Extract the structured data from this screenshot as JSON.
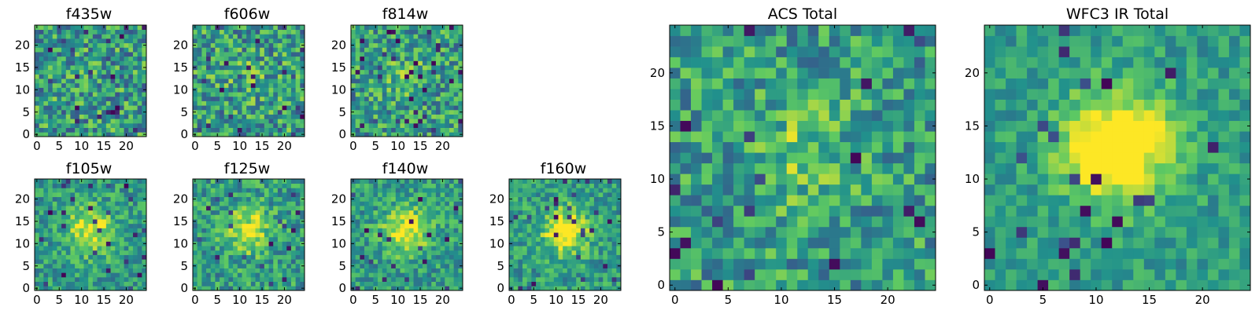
{
  "chart_data": {
    "type": "heatmap",
    "colormap": [
      "#440154",
      "#3b528b",
      "#21918c",
      "#5ec962",
      "#fde725"
    ],
    "grid_size": 25,
    "panels": [
      {
        "id": "f435w",
        "title": "f435w",
        "xticks": [
          0,
          5,
          10,
          15,
          20
        ],
        "yticks": [
          0,
          5,
          10,
          15,
          20
        ],
        "xlim": [
          -0.5,
          24.5
        ],
        "ylim": [
          -0.5,
          24.5
        ],
        "peak": 0.0,
        "noise": 0.6
      },
      {
        "id": "f606w",
        "title": "f606w",
        "xticks": [
          0,
          5,
          10,
          15,
          20
        ],
        "yticks": [
          0,
          5,
          10,
          15,
          20
        ],
        "xlim": [
          -0.5,
          24.5
        ],
        "ylim": [
          -0.5,
          24.5
        ],
        "peak": 0.1,
        "noise": 0.6
      },
      {
        "id": "f814w",
        "title": "f814w",
        "xticks": [
          0,
          5,
          10,
          15,
          20
        ],
        "yticks": [
          0,
          5,
          10,
          15,
          20
        ],
        "xlim": [
          -0.5,
          24.5
        ],
        "ylim": [
          -0.5,
          24.5
        ],
        "peak": 0.15,
        "noise": 0.55
      },
      {
        "id": "f105w",
        "title": "f105w",
        "xticks": [
          0,
          5,
          10,
          15,
          20
        ],
        "yticks": [
          0,
          5,
          10,
          15,
          20
        ],
        "xlim": [
          -0.5,
          24.5
        ],
        "ylim": [
          -0.5,
          24.5
        ],
        "peak": 0.45,
        "noise": 0.4
      },
      {
        "id": "f125w",
        "title": "f125w",
        "xticks": [
          0,
          5,
          10,
          15,
          20
        ],
        "yticks": [
          0,
          5,
          10,
          15,
          20
        ],
        "xlim": [
          -0.5,
          24.5
        ],
        "ylim": [
          -0.5,
          24.5
        ],
        "peak": 0.4,
        "noise": 0.45
      },
      {
        "id": "f140w",
        "title": "f140w",
        "xticks": [
          0,
          5,
          10,
          15,
          20
        ],
        "yticks": [
          0,
          5,
          10,
          15,
          20
        ],
        "xlim": [
          -0.5,
          24.5
        ],
        "ylim": [
          -0.5,
          24.5
        ],
        "peak": 0.45,
        "noise": 0.4
      },
      {
        "id": "f160w",
        "title": "f160w",
        "xticks": [
          0,
          5,
          10,
          15,
          20
        ],
        "yticks": [
          0,
          5,
          10,
          15,
          20
        ],
        "xlim": [
          -0.5,
          24.5
        ],
        "ylim": [
          -0.5,
          24.5
        ],
        "peak": 0.5,
        "noise": 0.4
      },
      {
        "id": "acs-total",
        "title": "ACS Total",
        "xticks": [
          0,
          5,
          10,
          15,
          20
        ],
        "yticks": [
          0,
          5,
          10,
          15,
          20
        ],
        "xlim": [
          -0.5,
          24.5
        ],
        "ylim": [
          -0.5,
          24.5
        ],
        "peak": 0.2,
        "noise": 0.5
      },
      {
        "id": "wfc3-ir-total",
        "title": "WFC3 IR Total",
        "xticks": [
          0,
          5,
          10,
          15,
          20
        ],
        "yticks": [
          0,
          5,
          10,
          15,
          20
        ],
        "xlim": [
          -0.5,
          24.5
        ],
        "ylim": [
          -0.5,
          24.5
        ],
        "peak": 0.7,
        "noise": 0.3
      }
    ]
  }
}
